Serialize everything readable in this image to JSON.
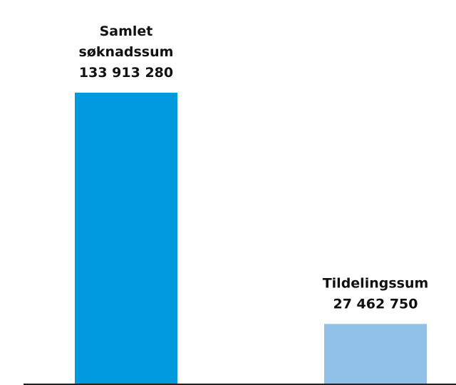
{
  "chart_data": {
    "type": "bar",
    "title": "",
    "xlabel": "",
    "ylabel": "",
    "categories": [
      "Samlet søknadssum",
      "Tildelingssum"
    ],
    "values": [
      133913280,
      27462750
    ],
    "value_labels": [
      "133 913 280",
      "27 462 750"
    ],
    "label_lines": [
      [
        "Samlet",
        "søknadssum",
        "133 913 280"
      ],
      [
        "Tildelingssum",
        "27 462 750"
      ]
    ],
    "colors": [
      "#0099dd",
      "#8fc2e6"
    ],
    "ylim": [
      0,
      133913280
    ],
    "grid": false,
    "legend": "none"
  }
}
